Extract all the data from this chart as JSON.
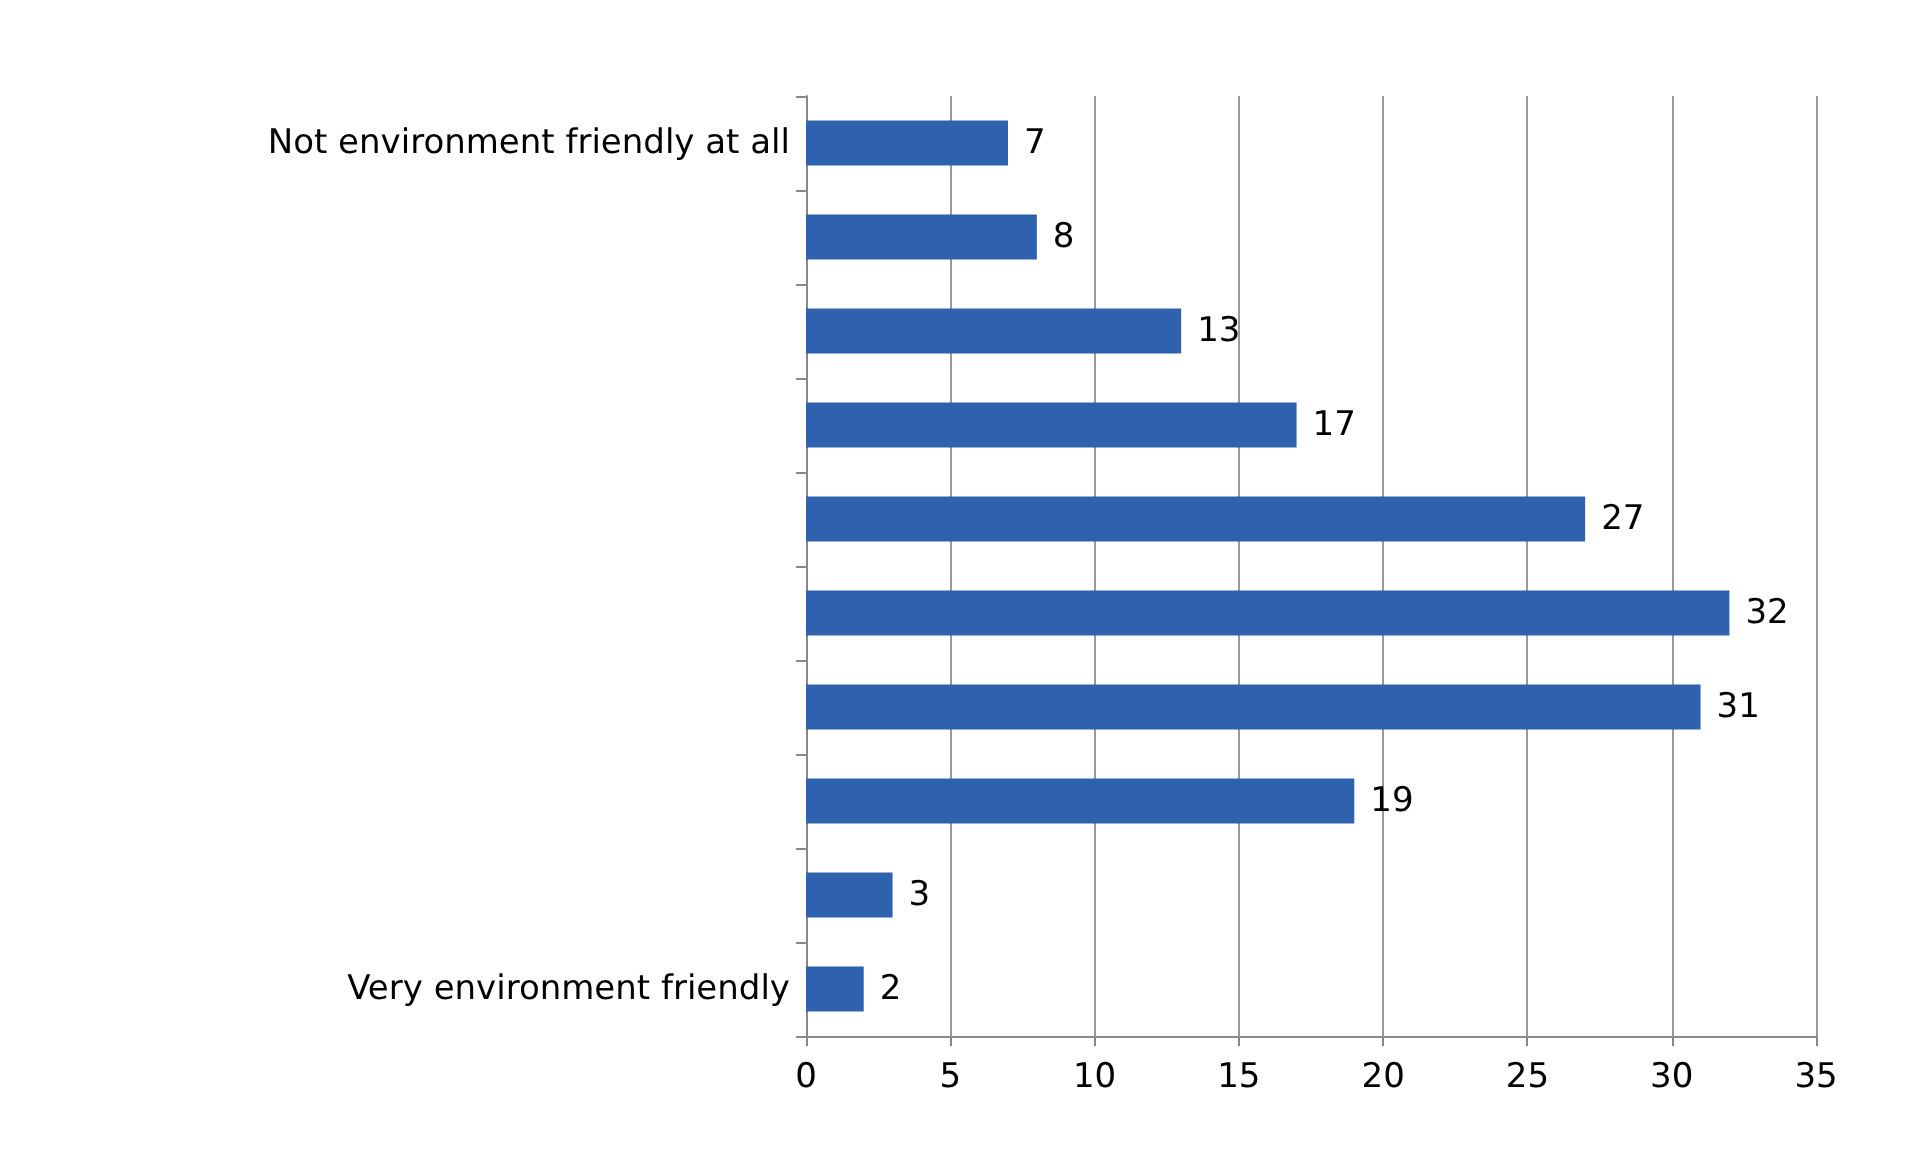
{
  "chart_data": {
    "type": "bar",
    "orientation": "horizontal",
    "categories": [
      "Not environment friendly at all",
      null,
      null,
      null,
      null,
      null,
      null,
      null,
      null,
      "Very environment friendly"
    ],
    "values": [
      7,
      8,
      13,
      17,
      27,
      32,
      31,
      19,
      3,
      2
    ],
    "color": "#2e62ae",
    "xlim": [
      0,
      35
    ],
    "xticks": [
      0,
      5,
      10,
      15,
      20,
      25,
      30,
      35
    ],
    "grid": "x",
    "data_labels": true
  }
}
